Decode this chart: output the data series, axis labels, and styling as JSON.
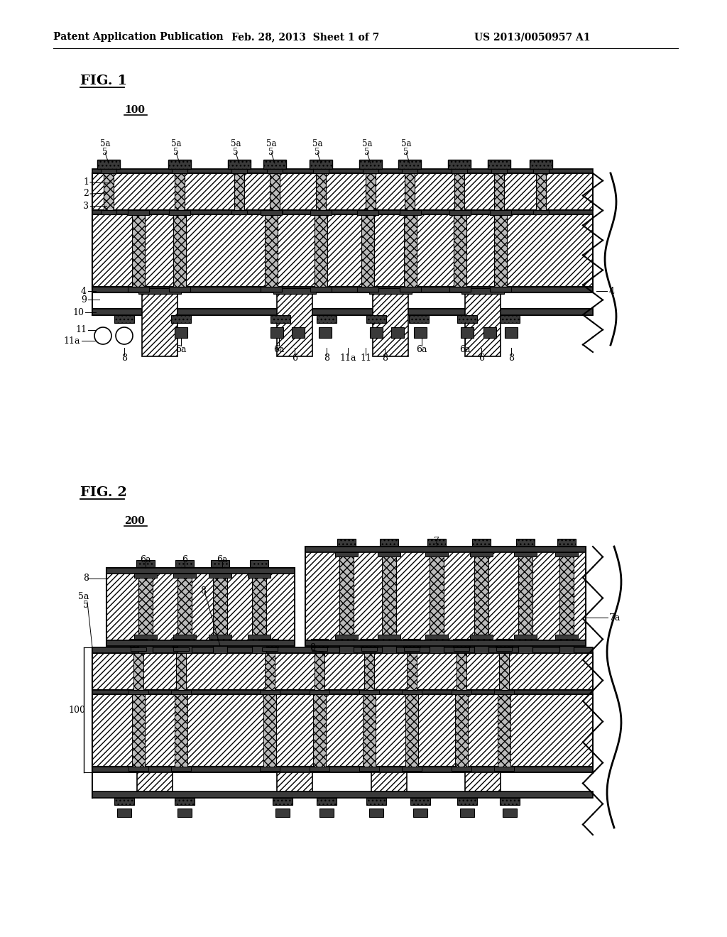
{
  "header_left": "Patent Application Publication",
  "header_mid": "Feb. 28, 2013  Sheet 1 of 7",
  "header_right": "US 2013/0050957 A1",
  "fig1_label": "FIG. 1",
  "fig1_ref": "100",
  "fig2_label": "FIG. 2",
  "fig2_ref": "200",
  "bg": "#ffffff",
  "lc": "#000000",
  "dark": "#3a3a3a",
  "hatch_fill": "#ffffff",
  "hatch_style": "////",
  "pad_hatch": "xxxx"
}
